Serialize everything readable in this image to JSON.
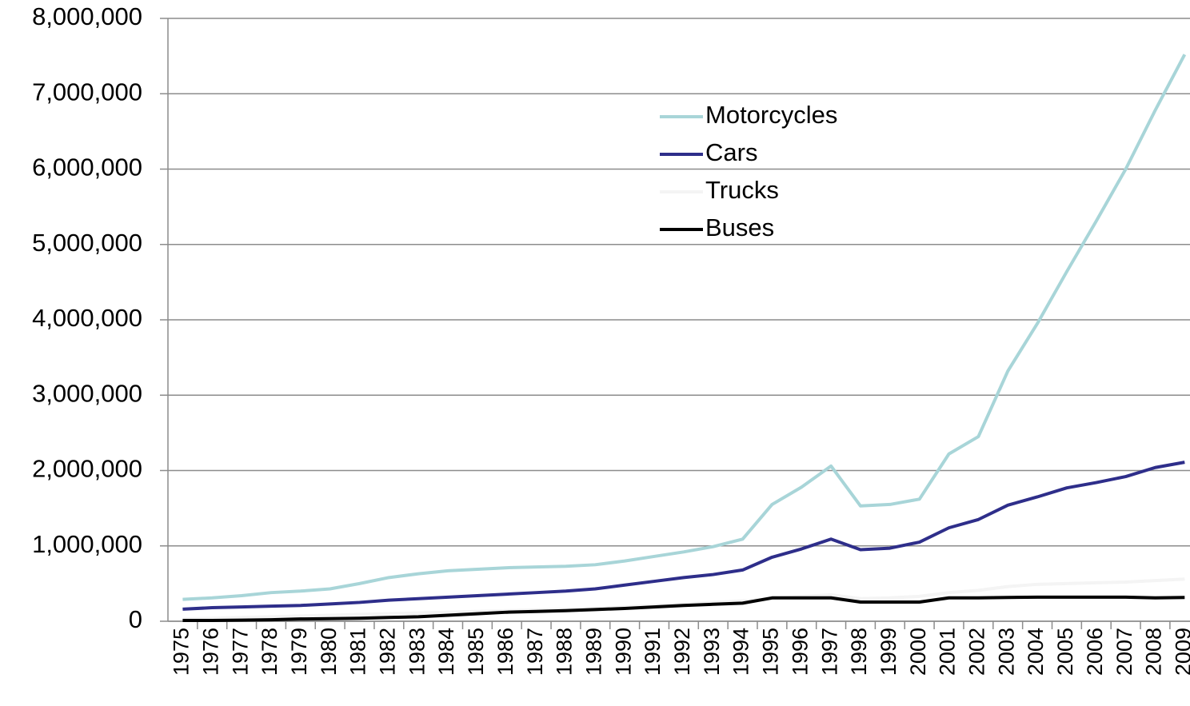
{
  "chart_data": {
    "type": "line",
    "categories": [
      "1975",
      "1976",
      "1977",
      "1978",
      "1979",
      "1980",
      "1981",
      "1982",
      "1983",
      "1984",
      "1985",
      "1986",
      "1987",
      "1988",
      "1989",
      "1990",
      "1991",
      "1992",
      "1993",
      "1994",
      "1995",
      "1996",
      "1997",
      "1998",
      "1999",
      "2000",
      "2001",
      "2002",
      "2003",
      "2004",
      "2005",
      "2006",
      "2007",
      "2008",
      "2009"
    ],
    "series": [
      {
        "name": "Motorcycles",
        "color": "#a8d5d8",
        "values": [
          290000,
          310000,
          340000,
          380000,
          400000,
          430000,
          500000,
          580000,
          630000,
          670000,
          690000,
          710000,
          720000,
          730000,
          750000,
          800000,
          860000,
          920000,
          990000,
          1090000,
          1550000,
          1780000,
          2060000,
          1530000,
          1550000,
          1620000,
          2220000,
          2450000,
          3320000,
          3950000,
          4640000,
          5310000,
          6000000,
          6780000,
          7520000
        ]
      },
      {
        "name": "Cars",
        "color": "#2e2e8a",
        "values": [
          160000,
          180000,
          190000,
          200000,
          210000,
          230000,
          250000,
          280000,
          300000,
          320000,
          340000,
          360000,
          380000,
          400000,
          430000,
          480000,
          530000,
          580000,
          620000,
          680000,
          850000,
          960000,
          1090000,
          950000,
          970000,
          1050000,
          1240000,
          1350000,
          1540000,
          1650000,
          1770000,
          1840000,
          1920000,
          2040000,
          2110000
        ]
      },
      {
        "name": "Trucks",
        "color": "#f4f4f4",
        "values": [
          30000,
          40000,
          50000,
          60000,
          70000,
          80000,
          90000,
          100000,
          110000,
          120000,
          130000,
          140000,
          150000,
          160000,
          170000,
          190000,
          210000,
          230000,
          250000,
          270000,
          300000,
          330000,
          350000,
          300000,
          310000,
          330000,
          380000,
          410000,
          460000,
          490000,
          500000,
          510000,
          520000,
          540000,
          560000
        ]
      },
      {
        "name": "Buses",
        "color": "#000000",
        "values": [
          10000,
          10000,
          15000,
          20000,
          30000,
          35000,
          40000,
          50000,
          60000,
          80000,
          100000,
          120000,
          130000,
          140000,
          155000,
          170000,
          190000,
          210000,
          225000,
          240000,
          310000,
          310000,
          310000,
          255000,
          255000,
          255000,
          310000,
          310000,
          315000,
          320000,
          320000,
          320000,
          320000,
          310000,
          315000
        ]
      }
    ],
    "ylim": [
      0,
      8000000
    ],
    "yticks": [
      0,
      {
        "value": 1000000,
        "label": "1,000,000"
      },
      {
        "value": 2000000,
        "label": "2,000,000"
      },
      {
        "value": 3000000,
        "label": "3,000,000"
      },
      {
        "value": 4000000,
        "label": "4,000,000"
      },
      {
        "value": 5000000,
        "label": "5,000,000"
      },
      {
        "value": 6000000,
        "label": "6,000,000"
      },
      {
        "value": 7000000,
        "label": "7,000,000"
      },
      {
        "value": 8000000,
        "label": "8,000,000"
      }
    ],
    "grid": true
  }
}
